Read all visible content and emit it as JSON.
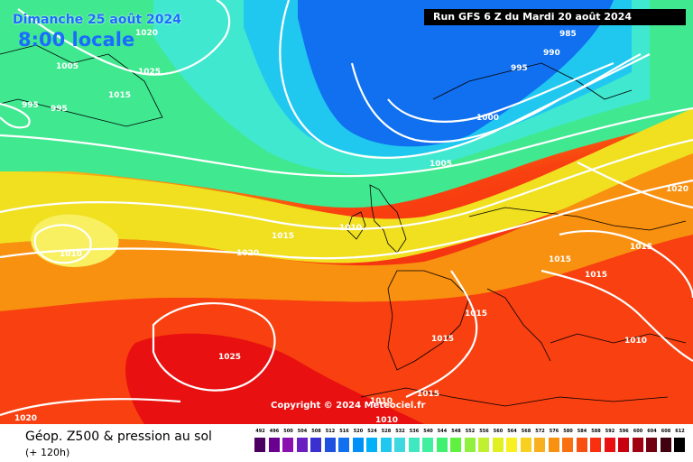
{
  "header": {
    "date": "Dimanche 25 août 2024",
    "time": "8:00 locale",
    "run": "Run GFS 6 Z du Mardi 20 août 2024"
  },
  "footer": {
    "title": "Géop. Z500 & pression au sol",
    "subtitle": "(+ 120h)",
    "copyright": "Copyright © 2024 Meteociel.fr"
  },
  "legend": {
    "ticks": [
      "492",
      "496",
      "500",
      "504",
      "508",
      "512",
      "516",
      "520",
      "524",
      "528",
      "532",
      "536",
      "540",
      "544",
      "548",
      "552",
      "556",
      "560",
      "564",
      "568",
      "572",
      "576",
      "580",
      "584",
      "588",
      "592",
      "596",
      "600",
      "604",
      "608",
      "612"
    ],
    "colors": [
      "#4a0060",
      "#6a0090",
      "#8a10b0",
      "#6a20c0",
      "#3a30d0",
      "#2050e0",
      "#1070f0",
      "#0090f8",
      "#00b0f8",
      "#20c8f0",
      "#40d8e0",
      "#40e8c0",
      "#40f0a0",
      "#40f070",
      "#60f040",
      "#90f040",
      "#c0f030",
      "#e0f020",
      "#f8f020",
      "#f8d020",
      "#f8b020",
      "#f89010",
      "#f87010",
      "#f85010",
      "#f83010",
      "#e81010",
      "#c80010",
      "#a00010",
      "#700010",
      "#400010",
      "#000000"
    ]
  },
  "pressure_labels": [
    {
      "text": "1020"
    },
    {
      "text": "1005"
    },
    {
      "text": "1025"
    },
    {
      "text": "1015"
    },
    {
      "text": "995"
    },
    {
      "text": "995"
    },
    {
      "text": "1010"
    },
    {
      "text": "1020"
    },
    {
      "text": "1015"
    },
    {
      "text": "1010"
    },
    {
      "text": "1025"
    },
    {
      "text": "1020"
    },
    {
      "text": "985"
    },
    {
      "text": "990"
    },
    {
      "text": "995"
    },
    {
      "text": "1000"
    },
    {
      "text": "1005"
    },
    {
      "text": "1020"
    },
    {
      "text": "1015"
    },
    {
      "text": "1015"
    },
    {
      "text": "1015"
    },
    {
      "text": "1015"
    },
    {
      "text": "1015"
    },
    {
      "text": "1010"
    },
    {
      "text": "1015"
    },
    {
      "text": "1010"
    },
    {
      "text": "1010"
    }
  ]
}
